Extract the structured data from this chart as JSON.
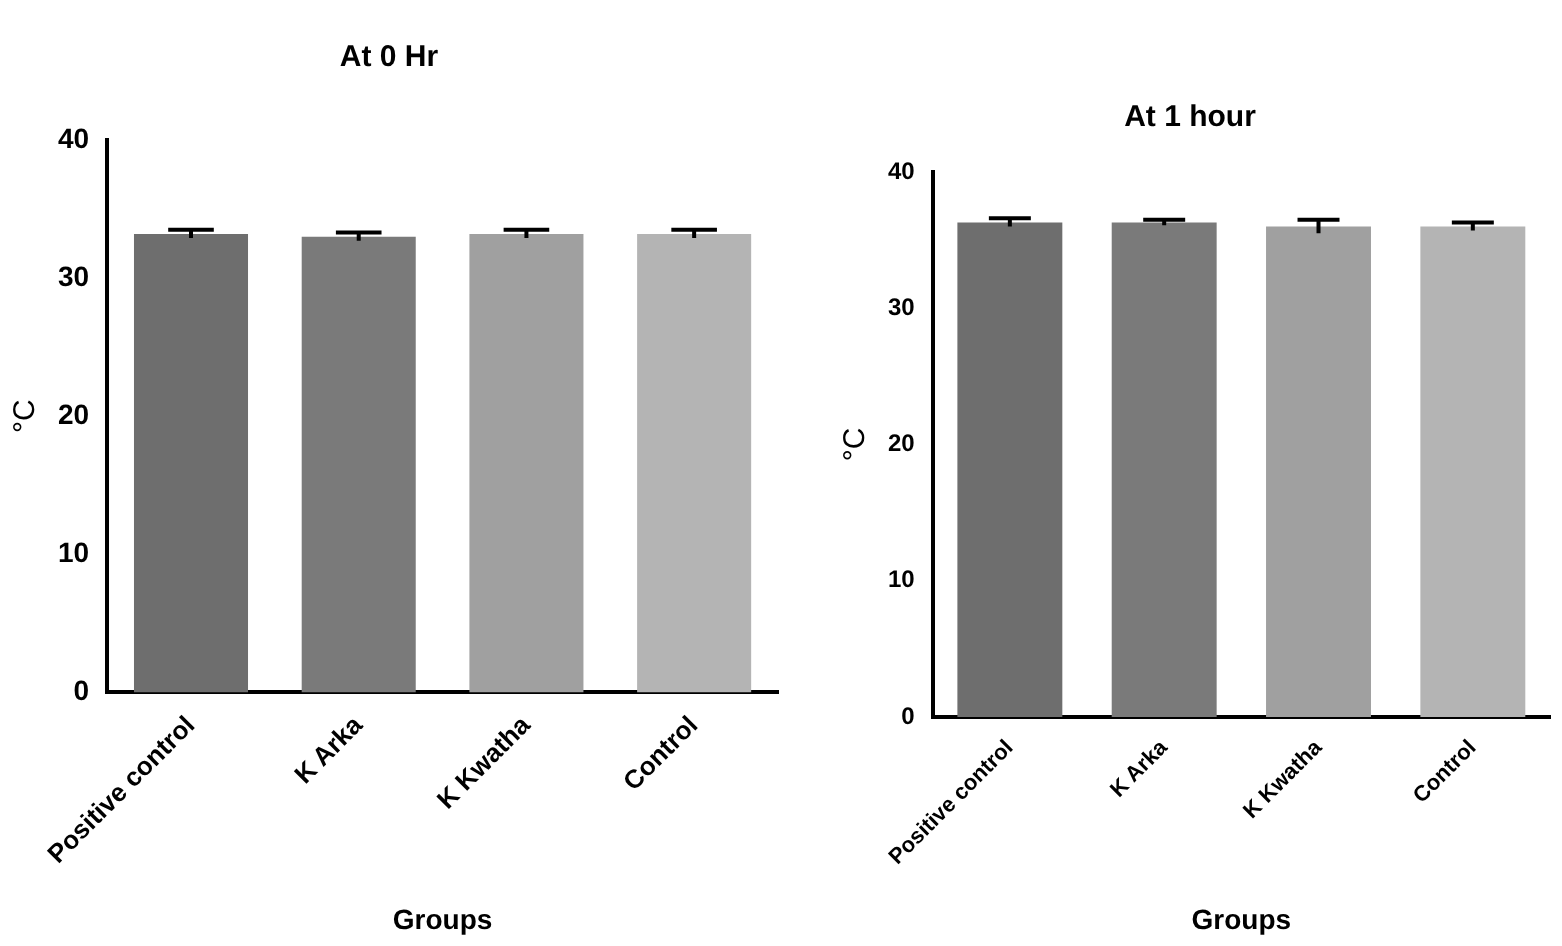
{
  "chart_data": [
    {
      "type": "bar",
      "title": "At 0 Hr",
      "xlabel": "Groups",
      "ylabel": "°C",
      "categories": [
        "Positive control",
        "K Arka",
        "K Kwatha",
        "Control"
      ],
      "values": [
        33.2,
        33.0,
        33.2,
        33.2
      ],
      "errors": [
        0.3,
        0.3,
        0.3,
        0.3
      ],
      "colors": [
        "#6e6e6e",
        "#7a7a7a",
        "#a0a0a0",
        "#b4b4b4"
      ],
      "ylim": [
        0,
        40
      ],
      "yticks": [
        0,
        10,
        20,
        30,
        40
      ],
      "grid": false,
      "legend": false
    },
    {
      "type": "bar",
      "title": "At 1 hour",
      "xlabel": "Groups",
      "ylabel": "°C",
      "categories": [
        "Positive control",
        "K Arka",
        "K Kwatha",
        "Control"
      ],
      "values": [
        36.3,
        36.3,
        36.0,
        36.0
      ],
      "errors": [
        0.3,
        0.2,
        0.5,
        0.3
      ],
      "colors": [
        "#6e6e6e",
        "#7a7a7a",
        "#a0a0a0",
        "#b4b4b4"
      ],
      "ylim": [
        0,
        40
      ],
      "yticks": [
        0,
        10,
        20,
        30,
        40
      ],
      "grid": false,
      "legend": false
    }
  ]
}
